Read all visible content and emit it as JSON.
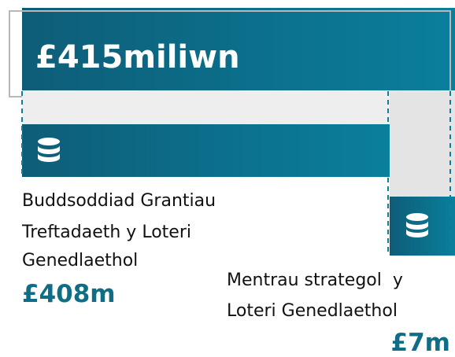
{
  "total": "£415miliwn",
  "items": [
    {
      "label_lines": [
        "Buddsoddiad Grantiau",
        "Treftadaeth y Loteri",
        "Genedlaethol"
      ],
      "value": "£408m"
    },
    {
      "label_lines": [
        "Mentrau strategol  y",
        "Loteri Genedlaethol"
      ],
      "value": "£7m"
    }
  ]
}
